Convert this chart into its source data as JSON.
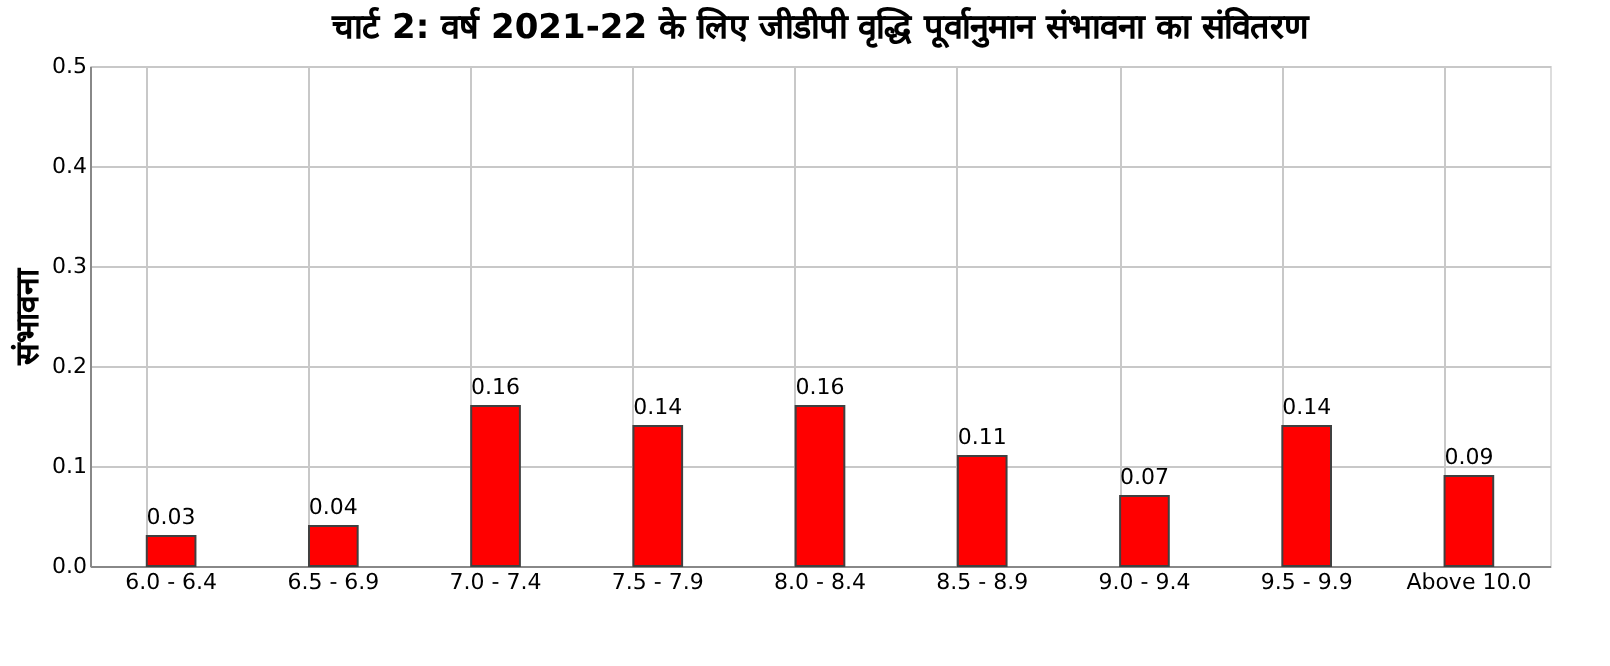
{
  "chart_data": {
    "type": "bar",
    "title": "चार्ट 2: वर्ष 2021-22 के लिए जीडीपी वृद्धि पूर्वानुमान संभावना का संवितरण",
    "ylabel": "संभावना",
    "categories": [
      "6.0 - 6.4",
      "6.5 - 6.9",
      "7.0 - 7.4",
      "7.5 - 7.9",
      "8.0 - 8.4",
      "8.5 - 8.9",
      "9.0 - 9.4",
      "9.5 - 9.9",
      "Above 10.0"
    ],
    "values": [
      0.03,
      0.04,
      0.16,
      0.14,
      0.16,
      0.11,
      0.07,
      0.14,
      0.09
    ],
    "color": "#ff0000",
    "ylim": [
      0,
      0.5
    ],
    "yticks": [
      {
        "value": 0,
        "label": "0.0"
      },
      {
        "value": 0.1,
        "label": "0.1"
      },
      {
        "value": 0.2,
        "label": "0.2"
      },
      {
        "value": 0.3,
        "label": "0.3"
      },
      {
        "value": 0.4,
        "label": "0.4"
      },
      {
        "value": 0.5,
        "label": "0.5"
      }
    ],
    "grid": true,
    "data_labels": true
  }
}
